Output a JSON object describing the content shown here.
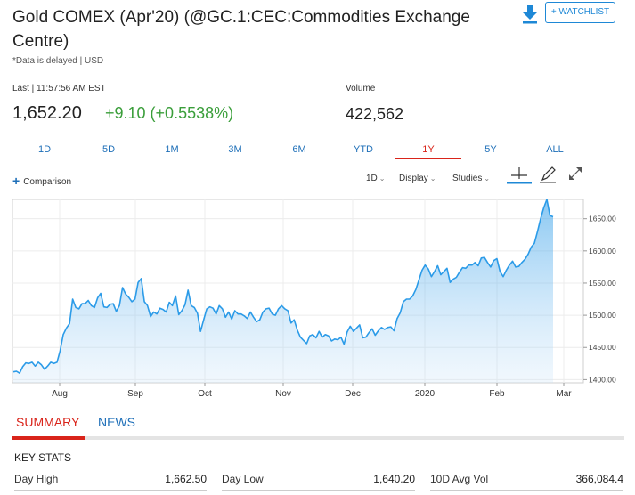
{
  "header": {
    "title": "Gold COMEX (Apr'20) (@GC.1:CEC:Commodities Exchange Centre)",
    "delayed_note": "*Data is delayed | USD",
    "watchlist_label": "+ WATCHLIST",
    "download_icon": "download-icon"
  },
  "quote": {
    "last_label": "Last | 11:57:56 AM EST",
    "last_price": "1,652.20",
    "change": "+9.10 (+0.5538%)",
    "volume_label": "Volume",
    "volume_value": "422,562",
    "change_color": "#3a9e3a"
  },
  "range_tabs": [
    {
      "label": "1D"
    },
    {
      "label": "5D"
    },
    {
      "label": "1M"
    },
    {
      "label": "3M"
    },
    {
      "label": "6M"
    },
    {
      "label": "YTD"
    },
    {
      "label": "1Y",
      "active": true
    },
    {
      "label": "5Y"
    },
    {
      "label": "ALL"
    }
  ],
  "toolbar": {
    "comparison": "Comparison",
    "interval": "1D",
    "display": "Display",
    "studies": "Studies",
    "icons": [
      "crosshair-icon",
      "draw-pencil-icon",
      "expand-icon"
    ]
  },
  "chart_data": {
    "type": "area",
    "x_tick_labels": [
      "Aug",
      "Sep",
      "Oct",
      "Nov",
      "Dec",
      "2020",
      "Feb",
      "Mar"
    ],
    "y_tick_labels": [
      "1400.00",
      "1450.00",
      "1500.00",
      "1550.00",
      "1600.00",
      "1650.00"
    ],
    "ylim": [
      1395,
      1680
    ],
    "grid": true,
    "line_color": "#2b9be8",
    "fill_color": "#c6e1f8",
    "series": [
      {
        "values": [
          1412,
          1413,
          1410,
          1420,
          1426,
          1425,
          1427,
          1421,
          1427,
          1423,
          1416,
          1421,
          1427,
          1425,
          1427,
          1445,
          1470,
          1480,
          1487,
          1525,
          1512,
          1510,
          1518,
          1518,
          1523,
          1515,
          1512,
          1527,
          1534,
          1513,
          1512,
          1517,
          1518,
          1506,
          1515,
          1543,
          1533,
          1528,
          1521,
          1525,
          1551,
          1557,
          1521,
          1515,
          1498,
          1505,
          1502,
          1511,
          1509,
          1505,
          1520,
          1515,
          1530,
          1501,
          1507,
          1516,
          1539,
          1515,
          1512,
          1503,
          1475,
          1493,
          1510,
          1513,
          1511,
          1502,
          1515,
          1510,
          1497,
          1505,
          1494,
          1507,
          1502,
          1502,
          1499,
          1495,
          1505,
          1497,
          1490,
          1493,
          1505,
          1510,
          1511,
          1502,
          1500,
          1510,
          1515,
          1510,
          1507,
          1488,
          1493,
          1477,
          1466,
          1461,
          1456,
          1468,
          1470,
          1465,
          1475,
          1466,
          1470,
          1468,
          1460,
          1463,
          1462,
          1466,
          1455,
          1474,
          1483,
          1475,
          1480,
          1485,
          1465,
          1466,
          1473,
          1479,
          1469,
          1476,
          1481,
          1478,
          1481,
          1482,
          1476,
          1495,
          1504,
          1521,
          1525,
          1525,
          1530,
          1540,
          1555,
          1570,
          1578,
          1572,
          1560,
          1568,
          1577,
          1563,
          1568,
          1573,
          1551,
          1556,
          1559,
          1567,
          1574,
          1573,
          1578,
          1578,
          1582,
          1577,
          1589,
          1590,
          1582,
          1575,
          1585,
          1588,
          1568,
          1560,
          1570,
          1578,
          1584,
          1575,
          1576,
          1582,
          1587,
          1595,
          1606,
          1612,
          1630,
          1650,
          1667,
          1680,
          1655,
          1653
        ]
      }
    ]
  },
  "summary_tabs": [
    {
      "label": "SUMMARY",
      "active": true
    },
    {
      "label": "NEWS"
    }
  ],
  "key_stats": {
    "heading": "KEY STATS",
    "items": [
      {
        "label": "Day High",
        "value": "1,662.50"
      },
      {
        "label": "Day Low",
        "value": "1,640.20"
      },
      {
        "label": "10D Avg Vol",
        "value": "366,084.4"
      }
    ]
  },
  "colors": {
    "accent": "#1e88d6",
    "active_tab": "#d9241a",
    "positive": "#3a9e3a"
  }
}
